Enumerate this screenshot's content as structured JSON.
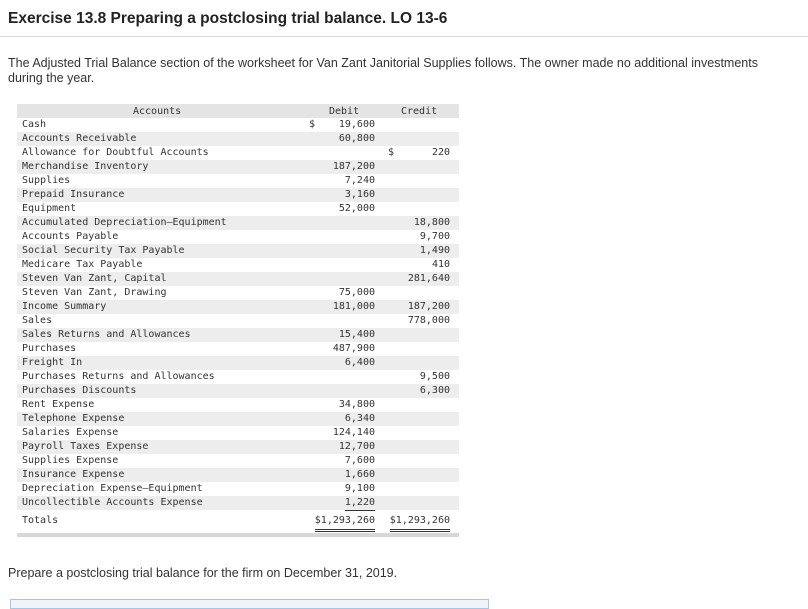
{
  "title": "Exercise 13.8 Preparing a postclosing trial balance. LO 13-6",
  "intro": "The Adjusted Trial Balance section of the worksheet for Van Zant Janitorial Supplies follows. The owner made no additional investments during the year.",
  "table": {
    "headers": {
      "accounts": "Accounts",
      "debit": "Debit",
      "credit": "Credit"
    },
    "rows": [
      {
        "account": "Cash",
        "debit_sign": "$",
        "debit": "19,600",
        "credit_sign": "",
        "credit": ""
      },
      {
        "account": "Accounts Receivable",
        "debit_sign": "",
        "debit": "60,800",
        "credit_sign": "",
        "credit": ""
      },
      {
        "account": "Allowance for Doubtful Accounts",
        "debit_sign": "",
        "debit": "",
        "credit_sign": "$",
        "credit": "220"
      },
      {
        "account": "Merchandise Inventory",
        "debit_sign": "",
        "debit": "187,200",
        "credit_sign": "",
        "credit": ""
      },
      {
        "account": "Supplies",
        "debit_sign": "",
        "debit": "7,240",
        "credit_sign": "",
        "credit": ""
      },
      {
        "account": "Prepaid Insurance",
        "debit_sign": "",
        "debit": "3,160",
        "credit_sign": "",
        "credit": ""
      },
      {
        "account": "Equipment",
        "debit_sign": "",
        "debit": "52,000",
        "credit_sign": "",
        "credit": ""
      },
      {
        "account": "Accumulated Depreciation—Equipment",
        "debit_sign": "",
        "debit": "",
        "credit_sign": "",
        "credit": "18,800"
      },
      {
        "account": "Accounts Payable",
        "debit_sign": "",
        "debit": "",
        "credit_sign": "",
        "credit": "9,700"
      },
      {
        "account": "Social Security Tax Payable",
        "debit_sign": "",
        "debit": "",
        "credit_sign": "",
        "credit": "1,490"
      },
      {
        "account": "Medicare Tax Payable",
        "debit_sign": "",
        "debit": "",
        "credit_sign": "",
        "credit": "410"
      },
      {
        "account": "Steven Van Zant, Capital",
        "debit_sign": "",
        "debit": "",
        "credit_sign": "",
        "credit": "281,640"
      },
      {
        "account": "Steven Van Zant, Drawing",
        "debit_sign": "",
        "debit": "75,000",
        "credit_sign": "",
        "credit": ""
      },
      {
        "account": "Income Summary",
        "debit_sign": "",
        "debit": "181,000",
        "credit_sign": "",
        "credit": "187,200"
      },
      {
        "account": "Sales",
        "debit_sign": "",
        "debit": "",
        "credit_sign": "",
        "credit": "778,000"
      },
      {
        "account": "Sales Returns and Allowances",
        "debit_sign": "",
        "debit": "15,400",
        "credit_sign": "",
        "credit": ""
      },
      {
        "account": "Purchases",
        "debit_sign": "",
        "debit": "487,900",
        "credit_sign": "",
        "credit": ""
      },
      {
        "account": "Freight In",
        "debit_sign": "",
        "debit": "6,400",
        "credit_sign": "",
        "credit": ""
      },
      {
        "account": "Purchases Returns and Allowances",
        "debit_sign": "",
        "debit": "",
        "credit_sign": "",
        "credit": "9,500"
      },
      {
        "account": "Purchases Discounts",
        "debit_sign": "",
        "debit": "",
        "credit_sign": "",
        "credit": "6,300"
      },
      {
        "account": "Rent Expense",
        "debit_sign": "",
        "debit": "34,800",
        "credit_sign": "",
        "credit": ""
      },
      {
        "account": "Telephone Expense",
        "debit_sign": "",
        "debit": "6,340",
        "credit_sign": "",
        "credit": ""
      },
      {
        "account": "Salaries Expense",
        "debit_sign": "",
        "debit": "124,140",
        "credit_sign": "",
        "credit": ""
      },
      {
        "account": "Payroll Taxes Expense",
        "debit_sign": "",
        "debit": "12,700",
        "credit_sign": "",
        "credit": ""
      },
      {
        "account": "Supplies Expense",
        "debit_sign": "",
        "debit": "7,600",
        "credit_sign": "",
        "credit": ""
      },
      {
        "account": "Insurance Expense",
        "debit_sign": "",
        "debit": "1,660",
        "credit_sign": "",
        "credit": ""
      },
      {
        "account": "Depreciation Expense—Equipment",
        "debit_sign": "",
        "debit": "9,100",
        "credit_sign": "",
        "credit": ""
      },
      {
        "account": "Uncollectible Accounts Expense",
        "debit_sign": "",
        "debit": "1,220",
        "credit_sign": "",
        "credit": ""
      }
    ],
    "totals": {
      "label": "Totals",
      "debit": "$1,293,260",
      "credit": "$1,293,260"
    }
  },
  "prompt": "Prepare a postclosing trial balance for the firm on December 31, 2019."
}
